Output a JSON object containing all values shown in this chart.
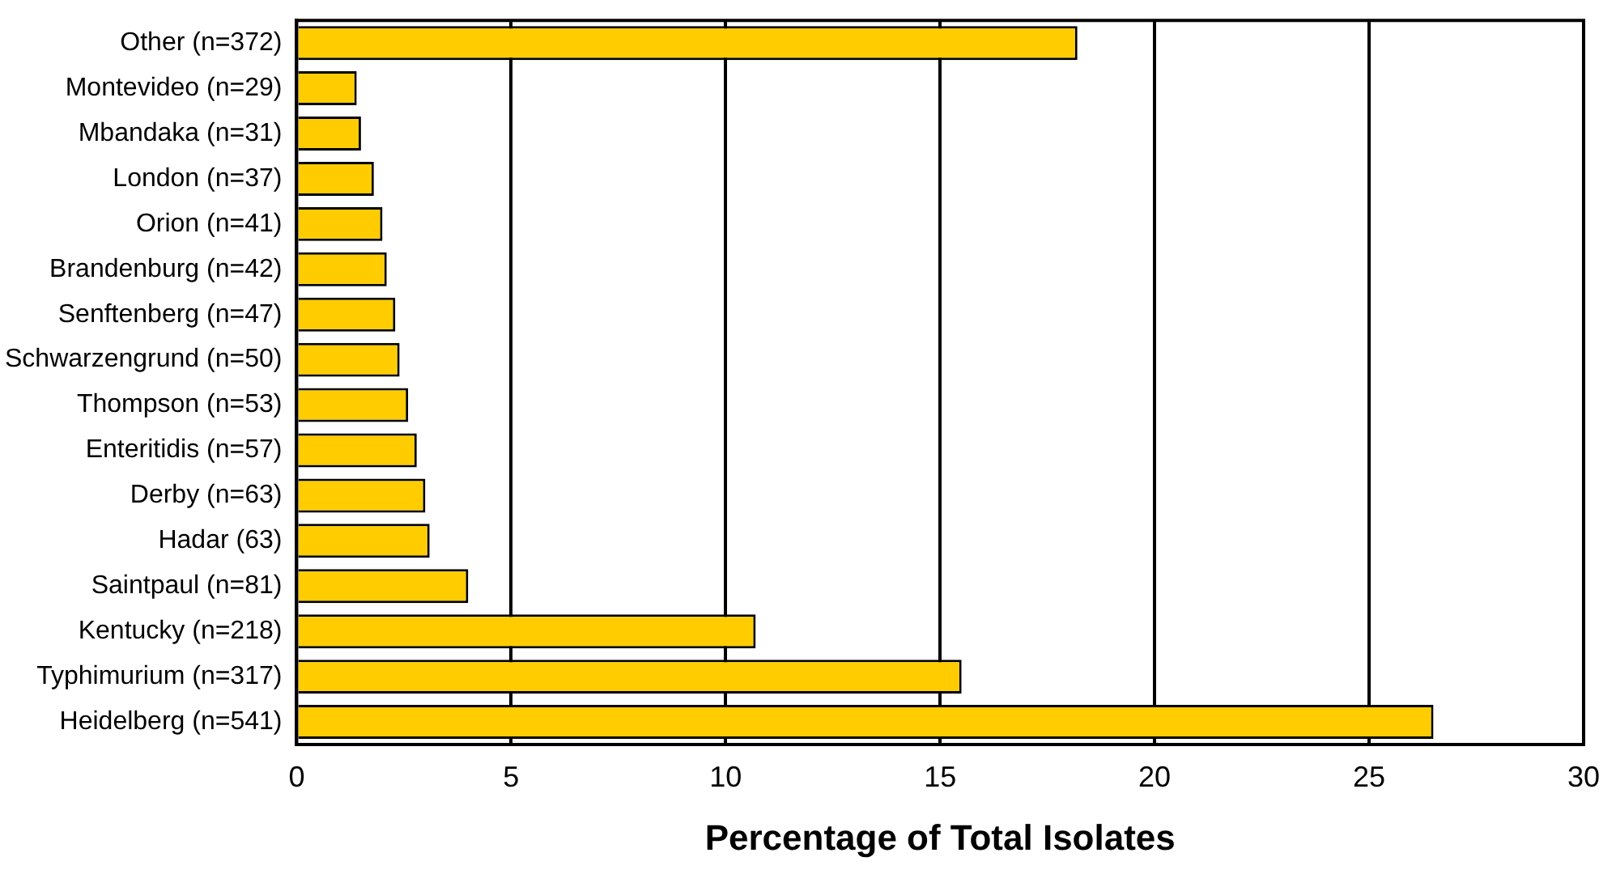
{
  "chart_data": {
    "type": "bar",
    "orientation": "horizontal",
    "xlabel": "Percentage of Total Isolates",
    "categories": [
      "Other (n=372)",
      "Montevideo (n=29)",
      "Mbandaka (n=31)",
      "London (n=37)",
      "Orion (n=41)",
      "Brandenburg (n=42)",
      "Senftenberg (n=47)",
      "Schwarzengrund (n=50)",
      "Thompson (n=53)",
      "Enteritidis (n=57)",
      "Derby (n=63)",
      "Hadar (63)",
      "Saintpaul (n=81)",
      "Kentucky (n=218)",
      "Typhimurium (n=317)",
      "Heidelberg (n=541)"
    ],
    "values": [
      18.2,
      1.4,
      1.5,
      1.8,
      2.0,
      2.1,
      2.3,
      2.4,
      2.6,
      2.8,
      3.0,
      3.1,
      4.0,
      10.7,
      15.5,
      26.5
    ],
    "color": "#ffcc00",
    "xlim": [
      0,
      30
    ],
    "xticks": [
      0,
      5,
      10,
      15,
      20,
      25,
      30
    ],
    "grid": "x",
    "legend": false
  }
}
